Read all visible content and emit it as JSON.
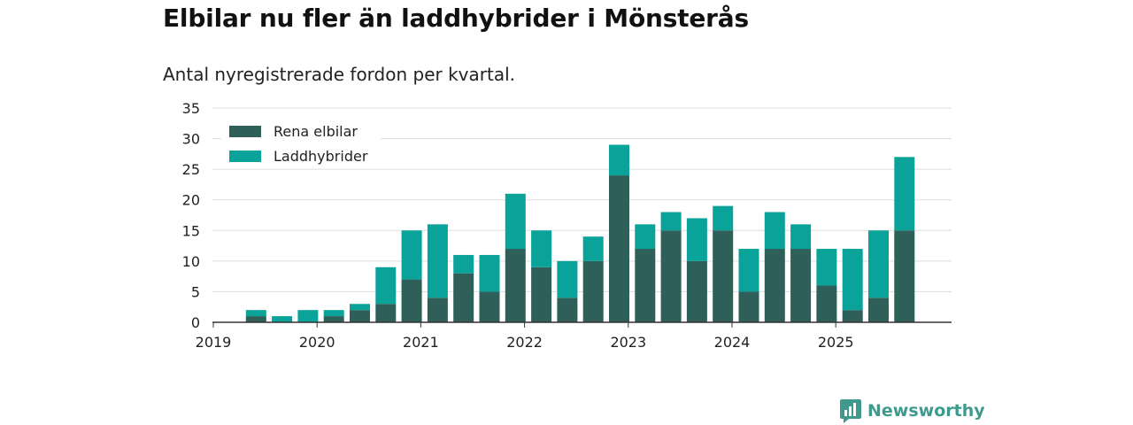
{
  "title": "Elbilar nu fler än laddhybrider i Mönsterås",
  "subtitle": "Antal nyregistrerade fordon per kvartal.",
  "brand": "Newsworthy",
  "colors": {
    "electric": "#2f5f59",
    "hybrid": "#0aa39a",
    "grid": "#dddddd",
    "axis": "#333333",
    "brand": "#3f9a8e"
  },
  "chart_data": {
    "type": "bar",
    "stacked": true,
    "title": "Elbilar nu fler än laddhybrider i Mönsterås",
    "subtitle": "Antal nyregistrerade fordon per kvartal.",
    "xlabel": "",
    "ylabel": "",
    "ylim": [
      0,
      35
    ],
    "yticks": [
      0,
      5,
      10,
      15,
      20,
      25,
      30,
      35
    ],
    "grid": true,
    "legend": "top-left",
    "year_ticks": [
      "2019",
      "2020",
      "2021",
      "2022",
      "2023",
      "2024",
      "2025"
    ],
    "categories": [
      "2019 Q1",
      "2019 Q2",
      "2019 Q3",
      "2019 Q4",
      "2020 Q1",
      "2020 Q2",
      "2020 Q3",
      "2020 Q4",
      "2021 Q1",
      "2021 Q2",
      "2021 Q3",
      "2021 Q4",
      "2022 Q1",
      "2022 Q2",
      "2022 Q3",
      "2022 Q4",
      "2023 Q1",
      "2023 Q2",
      "2023 Q3",
      "2023 Q4",
      "2024 Q1",
      "2024 Q2",
      "2024 Q3",
      "2024 Q4",
      "2025 Q1",
      "2025 Q2",
      "2025 Q3"
    ],
    "series": [
      {
        "name": "Rena elbilar",
        "values": [
          0,
          1,
          0,
          0,
          1,
          2,
          3,
          7,
          4,
          8,
          5,
          12,
          9,
          4,
          10,
          24,
          12,
          15,
          10,
          15,
          5,
          12,
          12,
          6,
          2,
          4,
          15
        ]
      },
      {
        "name": "Laddhybrider",
        "values": [
          0,
          1,
          1,
          2,
          1,
          1,
          6,
          8,
          12,
          3,
          6,
          9,
          6,
          6,
          4,
          5,
          4,
          3,
          7,
          4,
          7,
          6,
          4,
          6,
          10,
          11,
          12
        ]
      }
    ]
  }
}
